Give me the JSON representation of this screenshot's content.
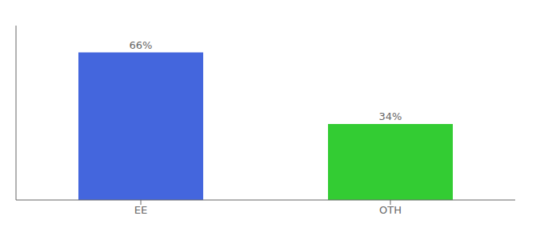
{
  "chart_data": {
    "type": "bar",
    "categories": [
      "EE",
      "OTH"
    ],
    "values": [
      66,
      34
    ],
    "colors": [
      "#4466dd",
      "#33cc33"
    ],
    "data_labels": true,
    "value_labels": [
      "66%",
      "34%"
    ],
    "ylim": [
      0,
      78
    ],
    "tick_labels": "x"
  }
}
